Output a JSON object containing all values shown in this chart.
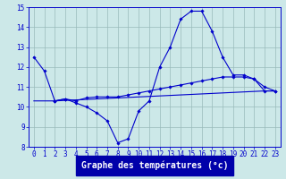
{
  "line1_x": [
    0,
    1,
    2,
    3,
    4,
    5,
    6,
    7,
    8,
    9,
    10,
    11,
    12,
    13,
    14,
    15,
    16,
    17,
    18,
    19,
    20,
    21,
    22,
    23
  ],
  "line1_y": [
    12.5,
    11.8,
    10.3,
    10.4,
    10.2,
    10.0,
    9.7,
    9.3,
    8.2,
    8.4,
    9.8,
    10.3,
    12.0,
    13.0,
    14.4,
    14.8,
    14.8,
    13.8,
    12.5,
    11.6,
    11.6,
    11.4,
    10.8,
    10.8
  ],
  "line2_x": [
    2,
    3,
    4,
    5,
    6,
    7,
    8,
    9,
    10,
    11,
    12,
    13,
    14,
    15,
    16,
    17,
    18,
    19,
    20,
    21,
    22,
    23
  ],
  "line2_y": [
    10.3,
    10.4,
    10.3,
    10.45,
    10.5,
    10.5,
    10.5,
    10.6,
    10.7,
    10.8,
    10.9,
    11.0,
    11.1,
    11.2,
    11.3,
    11.4,
    11.5,
    11.5,
    11.5,
    11.4,
    11.0,
    10.8
  ],
  "line3_x": [
    0,
    2,
    10,
    22,
    23
  ],
  "line3_y": [
    10.3,
    10.3,
    10.5,
    10.8,
    10.8
  ],
  "bg_color": "#cce8e8",
  "line_color": "#0000cc",
  "grid_color": "#99bbbb",
  "xlabel": "Graphe des températures (°c)",
  "xlabel_bg": "#0000aa",
  "xlabel_fg": "#ffffff",
  "xlim": [
    -0.5,
    23.5
  ],
  "ylim": [
    8,
    15
  ],
  "yticks": [
    8,
    9,
    10,
    11,
    12,
    13,
    14,
    15
  ],
  "xticks": [
    0,
    1,
    2,
    3,
    4,
    5,
    6,
    7,
    8,
    9,
    10,
    11,
    12,
    13,
    14,
    15,
    16,
    17,
    18,
    19,
    20,
    21,
    22,
    23
  ],
  "tick_fontsize": 5.5,
  "xlabel_fontsize": 7.0,
  "figwidth": 3.2,
  "figheight": 2.0,
  "dpi": 100
}
